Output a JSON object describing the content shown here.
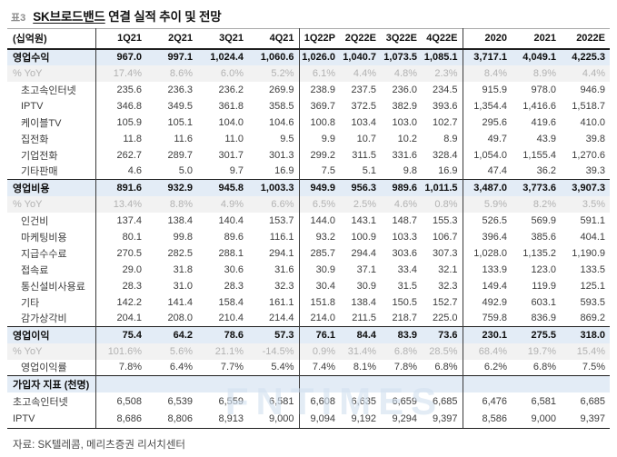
{
  "header": {
    "tag": "표3",
    "title_company": "SK브로드밴드",
    "title_rest": " 연결 실적 추이 및 전망"
  },
  "table": {
    "unit_label": "(십억원)",
    "columns": [
      "1Q21",
      "2Q21",
      "3Q21",
      "4Q21",
      "1Q22P",
      "2Q22E",
      "3Q22E",
      "4Q22E",
      "2020",
      "2021",
      "2022E"
    ],
    "rows": [
      {
        "label": "영업수익",
        "type": "section",
        "topline": false,
        "values": [
          "967.0",
          "997.1",
          "1,024.4",
          "1,060.6",
          "1,026.0",
          "1,040.7",
          "1,073.5",
          "1,085.1",
          "3,717.1",
          "4,049.1",
          "4,225.3"
        ]
      },
      {
        "label": "% YoY",
        "type": "yoy",
        "topline": false,
        "values": [
          "17.4%",
          "8.6%",
          "6.0%",
          "5.2%",
          "6.1%",
          "4.4%",
          "4.8%",
          "2.3%",
          "8.4%",
          "8.9%",
          "4.4%"
        ]
      },
      {
        "label": "초고속인터넷",
        "type": "item",
        "topline": false,
        "values": [
          "235.6",
          "236.3",
          "236.2",
          "269.9",
          "238.9",
          "237.5",
          "236.0",
          "234.5",
          "915.9",
          "978.0",
          "946.9"
        ]
      },
      {
        "label": "IPTV",
        "type": "item",
        "topline": false,
        "values": [
          "346.8",
          "349.5",
          "361.8",
          "358.5",
          "369.7",
          "372.5",
          "382.9",
          "393.6",
          "1,354.4",
          "1,416.6",
          "1,518.7"
        ]
      },
      {
        "label": "케이블TV",
        "type": "item",
        "topline": false,
        "values": [
          "105.9",
          "105.1",
          "104.0",
          "104.6",
          "100.8",
          "103.4",
          "103.0",
          "102.7",
          "295.6",
          "419.6",
          "410.0"
        ]
      },
      {
        "label": "집전화",
        "type": "item",
        "topline": false,
        "values": [
          "11.8",
          "11.6",
          "11.0",
          "9.5",
          "9.9",
          "10.7",
          "10.2",
          "8.9",
          "49.7",
          "43.9",
          "39.8"
        ]
      },
      {
        "label": "기업전화",
        "type": "item",
        "topline": false,
        "values": [
          "262.7",
          "289.7",
          "301.7",
          "301.3",
          "299.2",
          "311.5",
          "331.6",
          "328.4",
          "1,054.0",
          "1,155.4",
          "1,270.6"
        ]
      },
      {
        "label": "기타판매",
        "type": "item",
        "topline": false,
        "values": [
          "4.6",
          "5.0",
          "9.7",
          "16.9",
          "7.5",
          "5.1",
          "9.8",
          "16.9",
          "47.4",
          "36.2",
          "39.3"
        ]
      },
      {
        "label": "영업비용",
        "type": "section",
        "topline": true,
        "values": [
          "891.6",
          "932.9",
          "945.8",
          "1,003.3",
          "949.9",
          "956.3",
          "989.6",
          "1,011.5",
          "3,487.0",
          "3,773.6",
          "3,907.3"
        ]
      },
      {
        "label": "% YoY",
        "type": "yoy",
        "topline": false,
        "values": [
          "13.4%",
          "8.8%",
          "4.9%",
          "6.6%",
          "6.5%",
          "2.5%",
          "4.6%",
          "0.8%",
          "5.9%",
          "8.2%",
          "3.5%"
        ]
      },
      {
        "label": "인건비",
        "type": "item",
        "topline": false,
        "values": [
          "137.4",
          "138.4",
          "140.4",
          "153.7",
          "144.0",
          "143.1",
          "148.7",
          "155.3",
          "526.5",
          "569.9",
          "591.1"
        ]
      },
      {
        "label": "마케팅비용",
        "type": "item",
        "topline": false,
        "values": [
          "80.1",
          "99.8",
          "89.6",
          "116.1",
          "93.2",
          "100.9",
          "103.3",
          "106.7",
          "396.4",
          "385.6",
          "404.1"
        ]
      },
      {
        "label": "지급수수료",
        "type": "item",
        "topline": false,
        "values": [
          "270.5",
          "282.5",
          "288.1",
          "294.1",
          "285.7",
          "294.4",
          "303.6",
          "307.3",
          "1,028.0",
          "1,135.2",
          "1,190.9"
        ]
      },
      {
        "label": "접속료",
        "type": "item",
        "topline": false,
        "values": [
          "29.0",
          "31.8",
          "30.6",
          "31.6",
          "30.9",
          "37.1",
          "33.4",
          "32.1",
          "133.9",
          "123.0",
          "133.5"
        ]
      },
      {
        "label": "통신설비사용료",
        "type": "item",
        "topline": false,
        "values": [
          "28.3",
          "31.0",
          "28.3",
          "32.3",
          "30.4",
          "30.9",
          "31.5",
          "32.3",
          "149.4",
          "119.9",
          "125.1"
        ]
      },
      {
        "label": "기타",
        "type": "item",
        "topline": false,
        "values": [
          "142.2",
          "141.4",
          "158.4",
          "161.1",
          "151.8",
          "138.4",
          "150.5",
          "152.7",
          "492.9",
          "603.1",
          "593.5"
        ]
      },
      {
        "label": "감가상각비",
        "type": "item",
        "topline": false,
        "values": [
          "204.1",
          "208.0",
          "210.4",
          "214.4",
          "214.0",
          "211.5",
          "218.7",
          "225.0",
          "759.8",
          "836.9",
          "869.2"
        ]
      },
      {
        "label": "영업이익",
        "type": "section",
        "topline": true,
        "values": [
          "75.4",
          "64.2",
          "78.6",
          "57.3",
          "76.1",
          "84.4",
          "83.9",
          "73.6",
          "230.1",
          "275.5",
          "318.0"
        ]
      },
      {
        "label": "% YoY",
        "type": "yoy",
        "topline": false,
        "values": [
          "101.6%",
          "5.6%",
          "21.1%",
          "-14.5%",
          "0.9%",
          "31.4%",
          "6.8%",
          "28.5%",
          "68.4%",
          "19.7%",
          "15.4%"
        ]
      },
      {
        "label": "영업이익률",
        "type": "ratio",
        "topline": false,
        "values": [
          "7.8%",
          "6.4%",
          "7.7%",
          "5.4%",
          "7.4%",
          "8.1%",
          "7.8%",
          "6.8%",
          "6.2%",
          "6.8%",
          "7.5%"
        ]
      },
      {
        "label": "가입자 지표 (천명)",
        "type": "section",
        "topline": true,
        "values": [
          "",
          "",
          "",
          "",
          "",
          "",
          "",
          "",
          "",
          "",
          ""
        ]
      },
      {
        "label": "초고속인터넷",
        "type": "subscriber",
        "topline": false,
        "values": [
          "6,508",
          "6,539",
          "6,559",
          "6,581",
          "6,608",
          "6,635",
          "6,659",
          "6,685",
          "6,476",
          "6,581",
          "6,685"
        ]
      },
      {
        "label": "IPTV",
        "type": "subscriber",
        "topline": false,
        "values": [
          "8,686",
          "8,806",
          "8,913",
          "9,000",
          "9,094",
          "9,192",
          "9,294",
          "9,397",
          "8,586",
          "9,000",
          "9,397"
        ]
      }
    ]
  },
  "watermark": {
    "text": "FNTIMES"
  },
  "footer": {
    "source": "자료: SK텔레콤, 메리츠증권 리서치센터"
  },
  "colors": {
    "section_bg": "#e3ecf6",
    "yoy_bg": "#f2f2f2",
    "yoy_text": "#b2b2b2",
    "border_dark": "#1f1f1f",
    "divider": "#3a3a3a",
    "text_main": "#3c3c3c",
    "watermark": "#d3e1f0"
  }
}
